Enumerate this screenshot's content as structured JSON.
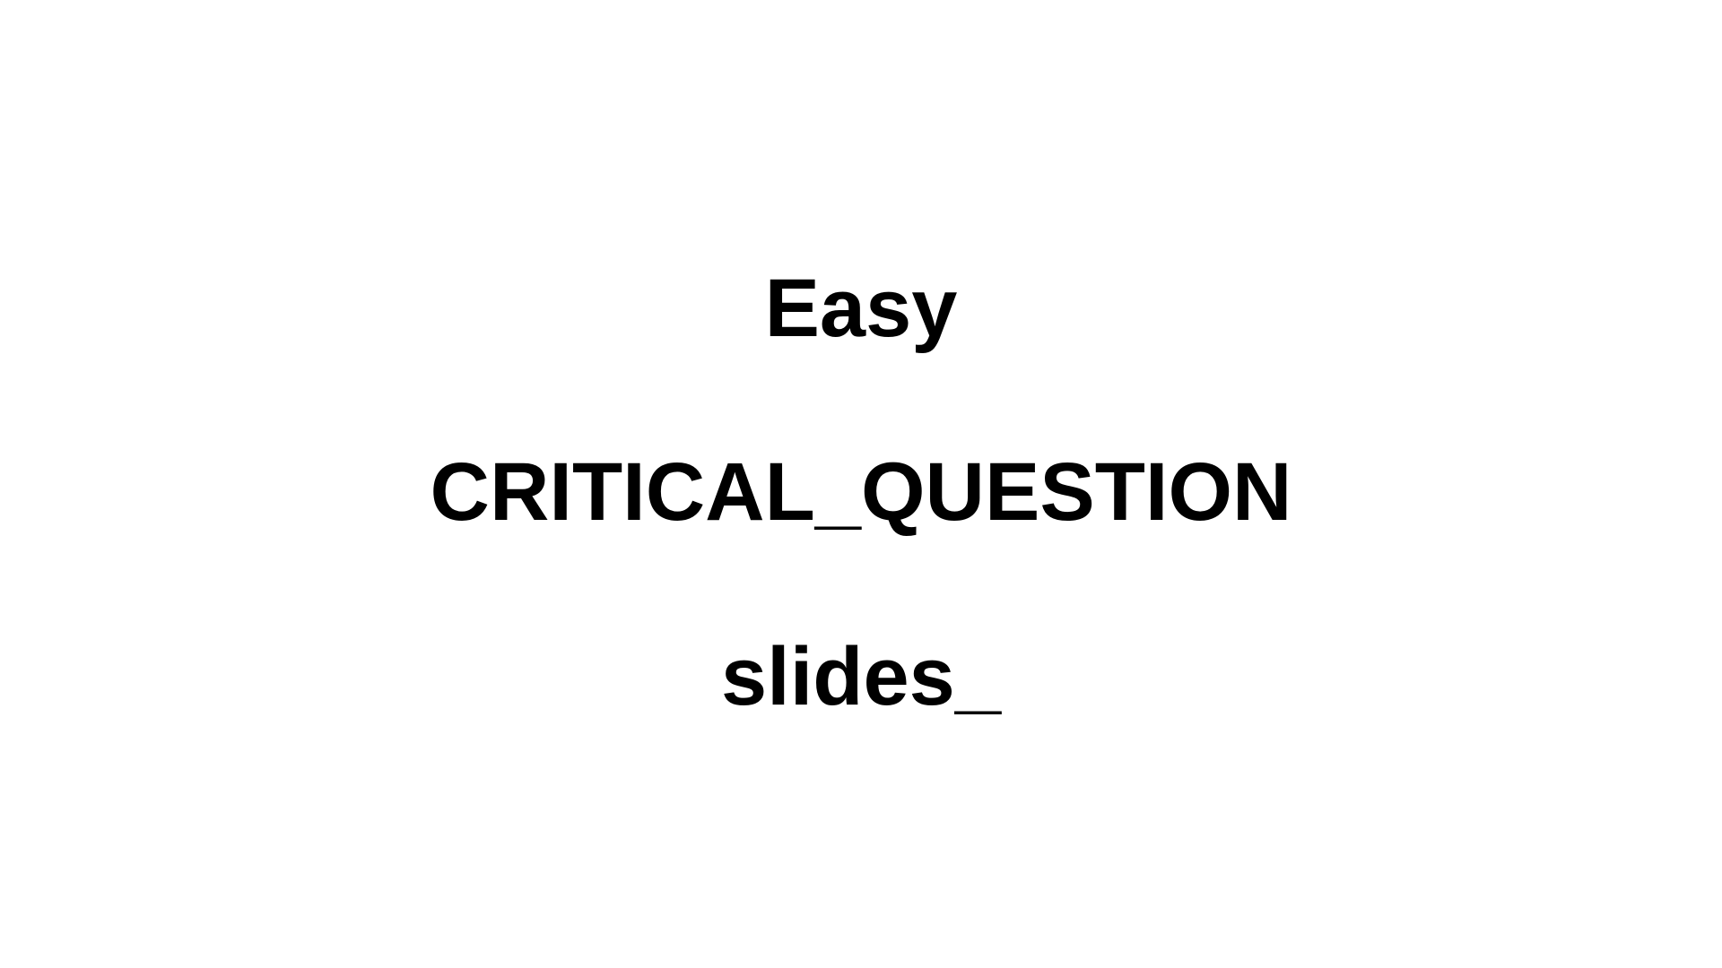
{
  "slide": {
    "difficulty": "Easy",
    "category": "CRITICAL_QUESTION",
    "source": "slides_"
  },
  "colors": {
    "background": "#ffffff",
    "text": "#000000"
  }
}
